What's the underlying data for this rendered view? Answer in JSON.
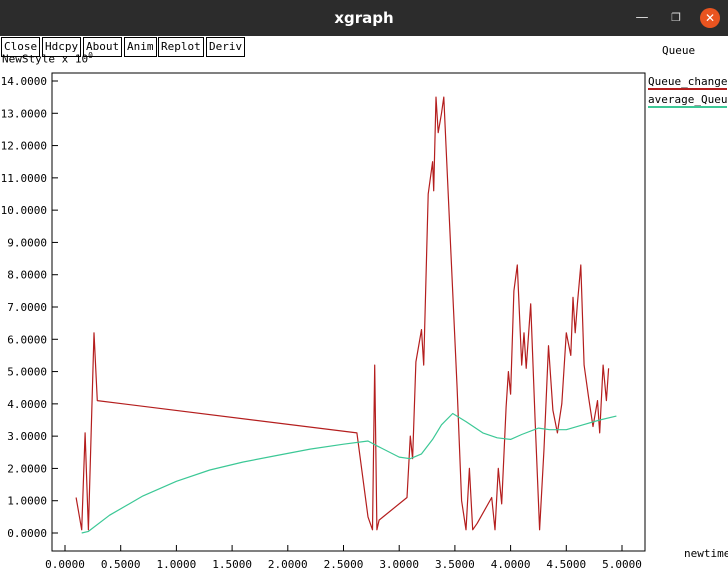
{
  "window": {
    "title": "xgraph",
    "min_icon": "minimize-icon",
    "max_icon": "maximize-icon",
    "close_icon": "close-icon"
  },
  "toolbar": {
    "buttons": [
      "Close",
      "Hdcpy",
      "About",
      "Anim",
      "Replot",
      "Deriv"
    ]
  },
  "plot": {
    "title": "Queue",
    "y_scale_label": "NewStyle x 10",
    "y_scale_exp": "0",
    "x_unit_label": "newtime"
  },
  "chart_data": {
    "type": "line",
    "xlim": [
      0,
      5
    ],
    "ylim": [
      0,
      14
    ],
    "x_ticks": [
      0,
      0.5,
      1,
      1.5,
      2,
      2.5,
      3,
      3.5,
      4,
      4.5,
      5
    ],
    "x_tick_labels": [
      "0.0000",
      "0.5000",
      "1.0000",
      "1.5000",
      "2.0000",
      "2.5000",
      "3.0000",
      "3.5000",
      "4.0000",
      "4.5000",
      "5.0000"
    ],
    "y_ticks": [
      0,
      1,
      2,
      3,
      4,
      5,
      6,
      7,
      8,
      9,
      10,
      11,
      12,
      13,
      14
    ],
    "y_tick_labels": [
      "0.0000",
      "1.0000",
      "2.0000",
      "3.0000",
      "4.0000",
      "5.0000",
      "6.0000",
      "7.0000",
      "8.0000",
      "9.0000",
      "10.0000",
      "11.0000",
      "12.0000",
      "13.0000",
      "14.0000"
    ],
    "grid": false,
    "legend_position": "right",
    "series": [
      {
        "name": "Queue_changed",
        "color": "#b41e1e",
        "points": [
          [
            0.1,
            1.1
          ],
          [
            0.15,
            0.1
          ],
          [
            0.18,
            3.1
          ],
          [
            0.21,
            0.1
          ],
          [
            0.26,
            6.2
          ],
          [
            0.27,
            5.5
          ],
          [
            0.29,
            4.1
          ],
          [
            2.62,
            3.1
          ],
          [
            2.72,
            0.5
          ],
          [
            2.76,
            0.1
          ],
          [
            2.78,
            5.2
          ],
          [
            2.8,
            0.1
          ],
          [
            2.82,
            0.4
          ],
          [
            3.07,
            1.1
          ],
          [
            3.1,
            3.0
          ],
          [
            3.12,
            2.3
          ],
          [
            3.15,
            5.3
          ],
          [
            3.2,
            6.3
          ],
          [
            3.22,
            5.2
          ],
          [
            3.26,
            10.5
          ],
          [
            3.3,
            11.5
          ],
          [
            3.31,
            10.6
          ],
          [
            3.33,
            13.5
          ],
          [
            3.35,
            12.4
          ],
          [
            3.38,
            13.0
          ],
          [
            3.4,
            13.5
          ],
          [
            3.42,
            12.0
          ],
          [
            3.52,
            4.5
          ],
          [
            3.56,
            1.0
          ],
          [
            3.6,
            0.1
          ],
          [
            3.63,
            2.0
          ],
          [
            3.66,
            0.1
          ],
          [
            3.7,
            0.3
          ],
          [
            3.83,
            1.1
          ],
          [
            3.86,
            0.1
          ],
          [
            3.89,
            2.0
          ],
          [
            3.92,
            0.9
          ],
          [
            3.96,
            3.9
          ],
          [
            3.98,
            5.0
          ],
          [
            4.0,
            4.3
          ],
          [
            4.03,
            7.5
          ],
          [
            4.06,
            8.3
          ],
          [
            4.1,
            5.2
          ],
          [
            4.12,
            6.2
          ],
          [
            4.14,
            5.1
          ],
          [
            4.18,
            7.1
          ],
          [
            4.22,
            3.5
          ],
          [
            4.26,
            0.1
          ],
          [
            4.3,
            2.6
          ],
          [
            4.34,
            5.8
          ],
          [
            4.38,
            3.8
          ],
          [
            4.42,
            3.1
          ],
          [
            4.46,
            4.0
          ],
          [
            4.5,
            6.2
          ],
          [
            4.54,
            5.5
          ],
          [
            4.56,
            7.3
          ],
          [
            4.58,
            6.2
          ],
          [
            4.6,
            7.1
          ],
          [
            4.63,
            8.3
          ],
          [
            4.66,
            5.2
          ],
          [
            4.7,
            4.2
          ],
          [
            4.74,
            3.3
          ],
          [
            4.78,
            4.1
          ],
          [
            4.8,
            3.1
          ],
          [
            4.83,
            5.2
          ],
          [
            4.86,
            4.1
          ],
          [
            4.88,
            5.1
          ]
        ]
      },
      {
        "name": "average_Queue",
        "color": "#3cc896",
        "points": [
          [
            0.15,
            0.0
          ],
          [
            0.21,
            0.05
          ],
          [
            0.4,
            0.55
          ],
          [
            0.7,
            1.15
          ],
          [
            1.0,
            1.6
          ],
          [
            1.3,
            1.95
          ],
          [
            1.6,
            2.2
          ],
          [
            1.9,
            2.4
          ],
          [
            2.2,
            2.6
          ],
          [
            2.5,
            2.75
          ],
          [
            2.72,
            2.85
          ],
          [
            2.8,
            2.7
          ],
          [
            3.0,
            2.35
          ],
          [
            3.1,
            2.3
          ],
          [
            3.2,
            2.45
          ],
          [
            3.3,
            2.9
          ],
          [
            3.38,
            3.35
          ],
          [
            3.48,
            3.7
          ],
          [
            3.6,
            3.45
          ],
          [
            3.75,
            3.1
          ],
          [
            3.88,
            2.95
          ],
          [
            4.0,
            2.9
          ],
          [
            4.1,
            3.05
          ],
          [
            4.25,
            3.25
          ],
          [
            4.35,
            3.2
          ],
          [
            4.5,
            3.2
          ],
          [
            4.65,
            3.35
          ],
          [
            4.8,
            3.5
          ],
          [
            4.95,
            3.62
          ]
        ]
      }
    ]
  }
}
